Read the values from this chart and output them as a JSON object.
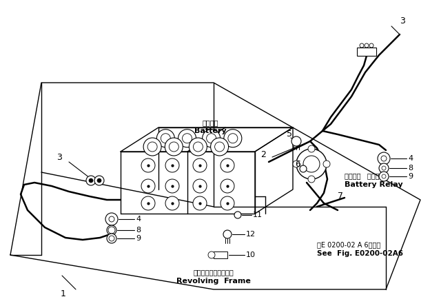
{
  "bg_color": "#ffffff",
  "line_color": "#000000",
  "fig_width": 6.24,
  "fig_height": 4.47,
  "dpi": 100,
  "labels": {
    "battery_jp": "バッテリ",
    "battery_en": "Battery",
    "relay_jp": "バッテリ   リレー",
    "relay_en": "Battery Relay",
    "frame_jp": "レボルビングフレーム",
    "frame_en": "Revolving  Frame",
    "ref_jp": "図E 0200-02 A 6図参照",
    "ref_en": "See  Fig. E0200-02A6"
  }
}
